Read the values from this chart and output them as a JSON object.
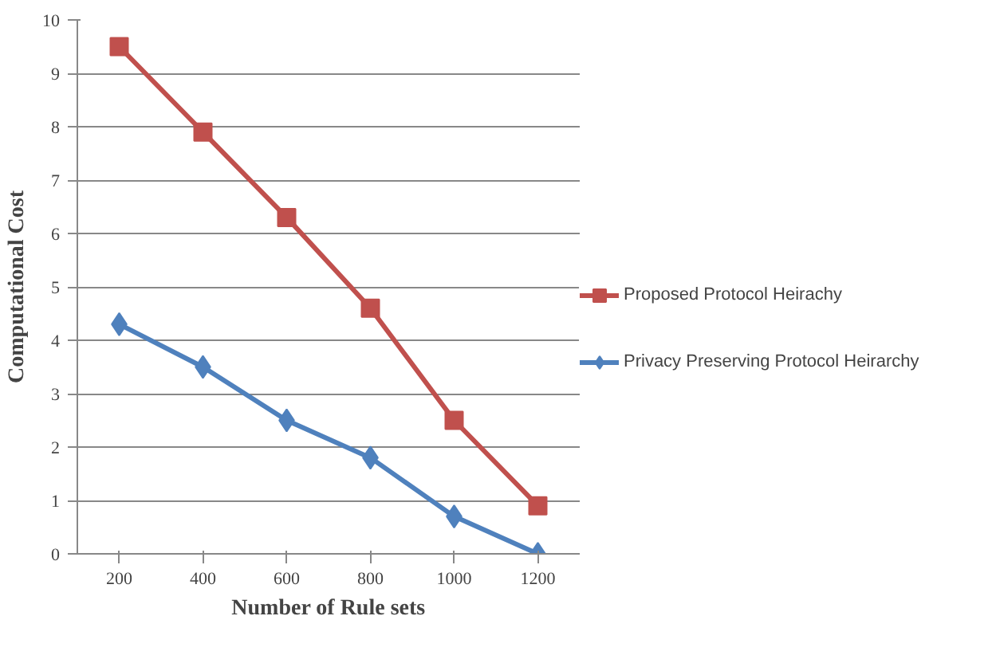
{
  "chart_data": {
    "type": "line",
    "xlabel": "Number of Rule sets",
    "ylabel": "Computational Cost",
    "categories": [
      "200",
      "400",
      "600",
      "800",
      "1000",
      "1200"
    ],
    "series": [
      {
        "name": "Proposed Protocol Heirachy",
        "color": "#c0504d",
        "marker": "square",
        "values": [
          9.5,
          7.9,
          6.3,
          4.6,
          2.5,
          0.9
        ]
      },
      {
        "name": "Privacy Preserving Protocol Heirarchy",
        "color": "#4f81bd",
        "marker": "diamond",
        "values": [
          4.3,
          3.5,
          2.5,
          1.8,
          0.7,
          0.0
        ]
      }
    ],
    "ylim": [
      0,
      10
    ],
    "yticks": [
      0,
      1,
      2,
      3,
      4,
      5,
      6,
      7,
      8,
      9,
      10
    ],
    "grid": "y",
    "legend": "right"
  }
}
